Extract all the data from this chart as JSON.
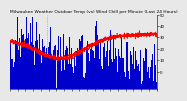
{
  "title": "Milwaukee Weather Outdoor Temp (vs) Wind Chill per Minute (Last 24 Hours)",
  "bg_color": "#e8e8e8",
  "plot_bg_color": "#e8e8e8",
  "bar_color": "#0000cc",
  "line_color": "#ff0000",
  "n_points": 1440,
  "ylim": [
    -15,
    50
  ],
  "yticks": [
    0,
    10,
    20,
    30,
    40,
    50
  ],
  "title_fontsize": 3.2,
  "tick_fontsize": 2.8,
  "line_width": 0.7
}
